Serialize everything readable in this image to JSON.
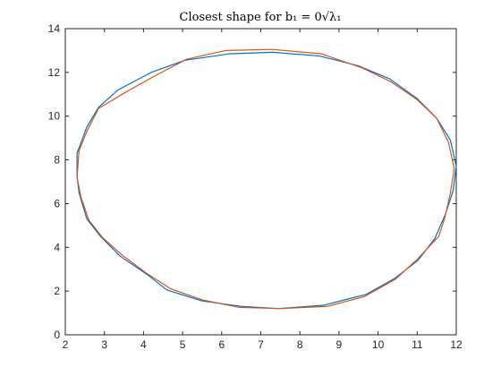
{
  "chart_data": {
    "type": "line",
    "title": "Closest shape for b₁ = 0√λ₁",
    "xlabel": "",
    "ylabel": "",
    "xlim": [
      2,
      12
    ],
    "ylim": [
      0,
      14
    ],
    "xticks": [
      2,
      3,
      4,
      5,
      6,
      7,
      8,
      9,
      10,
      11,
      12
    ],
    "yticks": [
      0,
      2,
      4,
      6,
      8,
      10,
      12,
      14
    ],
    "grid": false,
    "legend": "none",
    "series": [
      {
        "color": "#0072BD",
        "points": [
          [
            12.0,
            7.7
          ],
          [
            11.92,
            6.6
          ],
          [
            11.72,
            5.5
          ],
          [
            11.45,
            4.4
          ],
          [
            11.02,
            3.4
          ],
          [
            10.4,
            2.55
          ],
          [
            9.7,
            1.85
          ],
          [
            8.6,
            1.35
          ],
          [
            7.45,
            1.2
          ],
          [
            6.5,
            1.3
          ],
          [
            5.5,
            1.55
          ],
          [
            4.6,
            2.05
          ],
          [
            4.1,
            2.75
          ],
          [
            3.4,
            3.6
          ],
          [
            2.9,
            4.5
          ],
          [
            2.55,
            5.3
          ],
          [
            2.35,
            6.5
          ],
          [
            2.3,
            7.3
          ],
          [
            2.3,
            8.3
          ],
          [
            2.55,
            9.5
          ],
          [
            2.85,
            10.4
          ],
          [
            3.35,
            11.2
          ],
          [
            4.2,
            12.0
          ],
          [
            5.05,
            12.55
          ],
          [
            6.2,
            12.85
          ],
          [
            7.3,
            12.92
          ],
          [
            8.5,
            12.75
          ],
          [
            9.5,
            12.3
          ],
          [
            10.3,
            11.7
          ],
          [
            11.0,
            10.8
          ],
          [
            11.5,
            9.9
          ],
          [
            11.85,
            8.9
          ],
          [
            12.0,
            7.7
          ]
        ]
      },
      {
        "color": "#D95319",
        "points": [
          [
            11.95,
            7.6
          ],
          [
            11.85,
            6.5
          ],
          [
            11.7,
            5.3
          ],
          [
            11.55,
            4.5
          ],
          [
            11.0,
            3.45
          ],
          [
            10.45,
            2.55
          ],
          [
            9.65,
            1.75
          ],
          [
            8.7,
            1.3
          ],
          [
            7.5,
            1.2
          ],
          [
            6.45,
            1.25
          ],
          [
            5.5,
            1.6
          ],
          [
            4.7,
            2.1
          ],
          [
            4.05,
            2.85
          ],
          [
            3.45,
            3.65
          ],
          [
            2.95,
            4.45
          ],
          [
            2.6,
            5.25
          ],
          [
            2.4,
            6.3
          ],
          [
            2.3,
            7.2
          ],
          [
            2.35,
            8.4
          ],
          [
            2.55,
            9.3
          ],
          [
            2.85,
            10.35
          ],
          [
            3.5,
            11.05
          ],
          [
            4.3,
            11.85
          ],
          [
            5.1,
            12.6
          ],
          [
            6.1,
            13.0
          ],
          [
            7.3,
            13.05
          ],
          [
            8.55,
            12.85
          ],
          [
            9.6,
            12.2
          ],
          [
            10.35,
            11.55
          ],
          [
            11.0,
            10.75
          ],
          [
            11.5,
            9.9
          ],
          [
            11.8,
            8.8
          ],
          [
            11.95,
            7.6
          ]
        ]
      }
    ]
  }
}
